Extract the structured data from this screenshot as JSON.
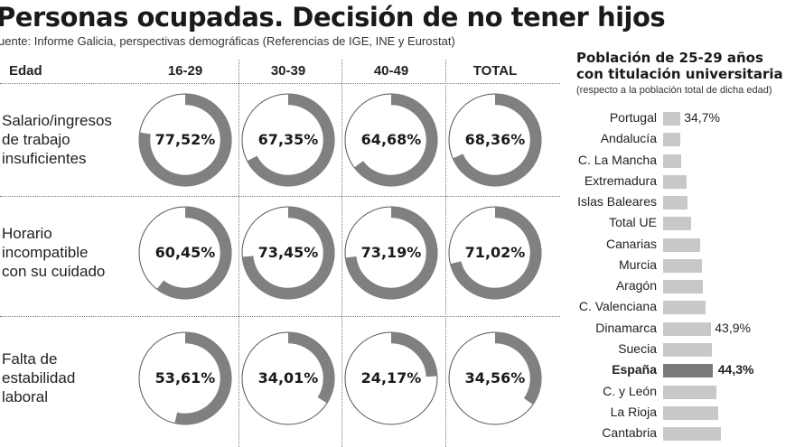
{
  "title": "Personas ocupadas. Decisión de no tener hijos",
  "source": "uente: Informe Galicia, perspectivas demográficas (Referencias de IGE, INE y Eurostat)",
  "chart_data": [
    {
      "type": "pie",
      "variant": "donut-grid",
      "header": {
        "row_label": "Edad",
        "columns": [
          "16-29",
          "30-39",
          "40-49",
          "TOTAL"
        ]
      },
      "rows": [
        {
          "label": [
            "Salario/ingresos",
            "de trabajo",
            "insuficientes"
          ],
          "values": [
            77.52,
            67.35,
            64.68,
            68.36
          ],
          "labels": [
            "77,52%",
            "67,35%",
            "64,68%",
            "68,36%"
          ]
        },
        {
          "label": [
            "Horario",
            "incompatible",
            "con su cuidado"
          ],
          "values": [
            60.45,
            73.45,
            73.19,
            71.02
          ],
          "labels": [
            "60,45%",
            "73,45%",
            "73,19%",
            "71,02%"
          ]
        },
        {
          "label": [
            "Falta de",
            "estabilidad",
            "laboral"
          ],
          "values": [
            53.61,
            34.01,
            24.17,
            34.56
          ],
          "labels": [
            "53,61%",
            "34,01%",
            "24,17%",
            "34,56%"
          ]
        }
      ],
      "colors": {
        "filled": "#808080",
        "empty": "#ffffff"
      }
    },
    {
      "type": "bar",
      "orientation": "horizontal",
      "title": [
        "Población de 25-29 años",
        "con titulación universitaria"
      ],
      "subtitle": "(respecto a la población total de dicha edad)",
      "categories": [
        "Portugal",
        "Andalucía",
        "C. La Mancha",
        "Extremadura",
        "Islas Baleares",
        "Total UE",
        "Canarias",
        "Murcia",
        "Aragón",
        "C. Valenciana",
        "Dinamarca",
        "Suecia",
        "España",
        "C. y León",
        "La Rioja",
        "Cantabria"
      ],
      "values": [
        34.7,
        34.5,
        35.0,
        36.4,
        36.9,
        38.0,
        40.5,
        41.1,
        41.5,
        42.2,
        43.9,
        44.1,
        44.3,
        45.4,
        46.0,
        46.8
      ],
      "data_labels": {
        "0": "34,7%",
        "10": "43,9%",
        "12": "44,3%"
      },
      "highlight": "España",
      "colors": {
        "bar": "#c8c8c8",
        "highlight": "#7a7a7a"
      }
    }
  ]
}
